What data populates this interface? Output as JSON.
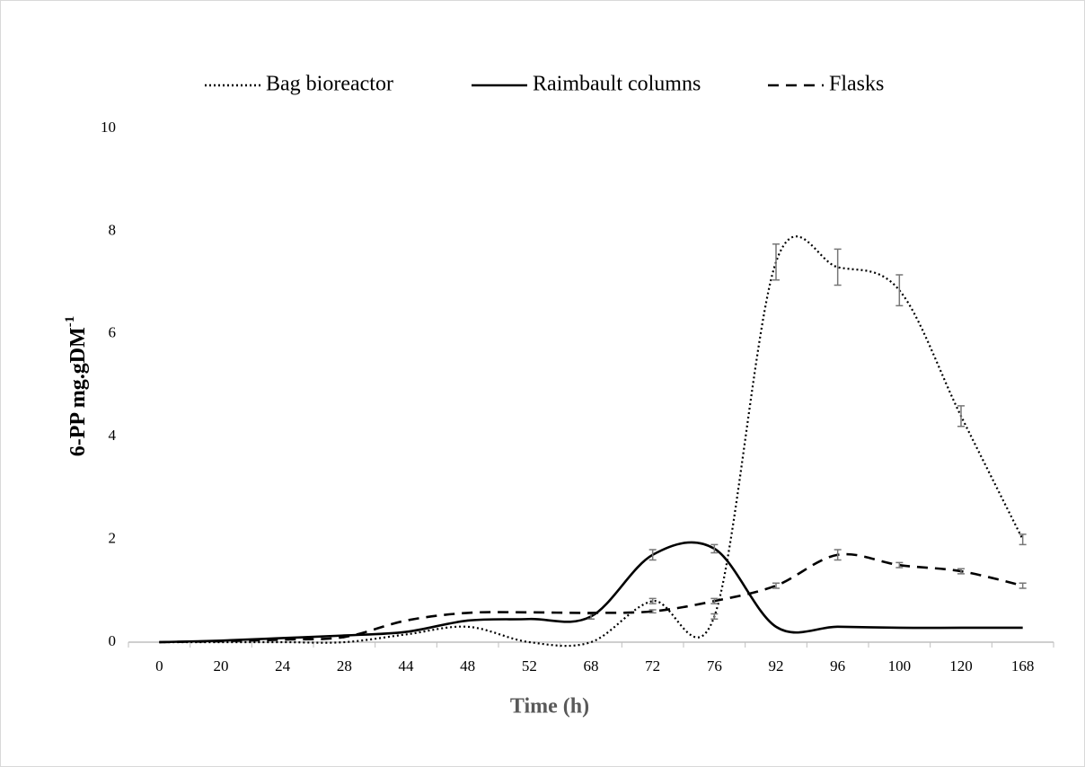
{
  "chart_data": {
    "type": "line",
    "x_label": "Time (h)",
    "y_label": "6-PP mg.gDM",
    "y_label_superscript": "-1",
    "categories": [
      "0",
      "20",
      "24",
      "28",
      "44",
      "48",
      "52",
      "68",
      "72",
      "76",
      "92",
      "96",
      "100",
      "120",
      "168"
    ],
    "ylim": [
      0,
      10
    ],
    "yticks": [
      0,
      2,
      4,
      6,
      8,
      10
    ],
    "grid": false,
    "smooth": true,
    "legend": "top",
    "error_color": "#777777",
    "series": [
      {
        "name": "Bag bioreactor",
        "color": "#000000",
        "dash": "dotted",
        "values": [
          0,
          0,
          0,
          0,
          0.15,
          0.3,
          0,
          0,
          0.8,
          0.5,
          7.4,
          7.3,
          6.85,
          4.4,
          2.0
        ],
        "errors": [
          null,
          null,
          null,
          null,
          null,
          null,
          null,
          null,
          0.05,
          0.05,
          0.35,
          0.35,
          0.3,
          0.2,
          0.1
        ]
      },
      {
        "name": "Raimbault columns",
        "color": "#000000",
        "dash": "solid",
        "values": [
          0,
          0.03,
          0.08,
          0.13,
          0.2,
          0.42,
          0.45,
          0.5,
          1.7,
          1.82,
          0.3,
          0.3,
          0.28,
          0.28,
          0.28
        ],
        "errors": [
          null,
          null,
          null,
          null,
          null,
          null,
          null,
          0.05,
          0.1,
          0.08,
          null,
          null,
          null,
          null,
          null
        ]
      },
      {
        "name": "Flasks",
        "color": "#000000",
        "dash": "dashed",
        "values": [
          0,
          0.02,
          0.05,
          0.1,
          0.42,
          0.57,
          0.58,
          0.57,
          0.6,
          0.8,
          1.1,
          1.7,
          1.5,
          1.38,
          1.1
        ],
        "errors": [
          null,
          null,
          null,
          null,
          null,
          null,
          null,
          null,
          0.03,
          0.05,
          0.05,
          0.1,
          0.05,
          0.05,
          0.05
        ]
      }
    ]
  }
}
